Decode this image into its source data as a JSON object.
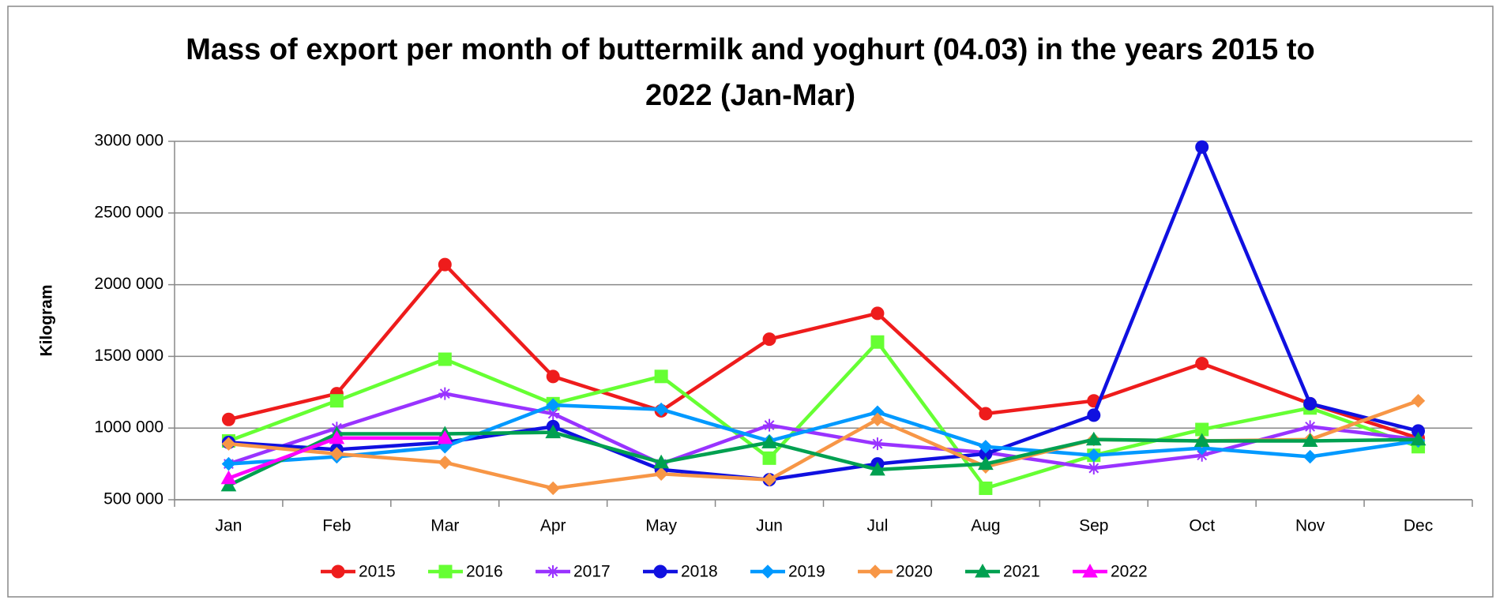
{
  "chart_data": {
    "type": "line",
    "title": "Mass of export per month of buttermilk and yoghurt (04.03) in the years 2015 to 2022 (Jan-Mar)",
    "ylabel": "Kilogram",
    "categories": [
      "Jan",
      "Feb",
      "Mar",
      "Apr",
      "May",
      "Jun",
      "Jul",
      "Aug",
      "Sep",
      "Oct",
      "Nov",
      "Dec"
    ],
    "ylim": [
      500000,
      3000000
    ],
    "yticks": [
      {
        "value": 500000,
        "label": "500 000"
      },
      {
        "value": 1000000,
        "label": "1000 000"
      },
      {
        "value": 1500000,
        "label": "1500 000"
      },
      {
        "value": 2000000,
        "label": "2000 000"
      },
      {
        "value": 2500000,
        "label": "2500 000"
      },
      {
        "value": 3000000,
        "label": "3000 000"
      }
    ],
    "grid": true,
    "legend": "bottom",
    "series": [
      {
        "name": "2015",
        "color": "#ee1c1c",
        "marker": "circle",
        "values": [
          1060000,
          1240000,
          2140000,
          1360000,
          1120000,
          1620000,
          1800000,
          1100000,
          1190000,
          1450000,
          1170000,
          930000
        ]
      },
      {
        "name": "2016",
        "color": "#66ff33",
        "marker": "square",
        "values": [
          910000,
          1190000,
          1480000,
          1170000,
          1360000,
          790000,
          1600000,
          580000,
          810000,
          990000,
          1140000,
          870000
        ]
      },
      {
        "name": "2017",
        "color": "#9933ff",
        "marker": "star",
        "values": [
          750000,
          1000000,
          1240000,
          1100000,
          750000,
          1020000,
          890000,
          830000,
          720000,
          810000,
          1010000,
          920000
        ]
      },
      {
        "name": "2018",
        "color": "#1010e0",
        "marker": "circle",
        "values": [
          900000,
          850000,
          900000,
          1010000,
          710000,
          640000,
          750000,
          820000,
          1090000,
          2960000,
          1170000,
          980000
        ]
      },
      {
        "name": "2019",
        "color": "#0099ff",
        "marker": "diamond",
        "values": [
          750000,
          800000,
          870000,
          1160000,
          1130000,
          910000,
          1110000,
          870000,
          810000,
          860000,
          800000,
          910000
        ]
      },
      {
        "name": "2020",
        "color": "#f79646",
        "marker": "diamond",
        "values": [
          890000,
          820000,
          760000,
          580000,
          680000,
          640000,
          1060000,
          730000,
          920000,
          910000,
          920000,
          1190000
        ]
      },
      {
        "name": "2021",
        "color": "#00a050",
        "marker": "triangle",
        "values": [
          600000,
          960000,
          960000,
          970000,
          760000,
          900000,
          710000,
          750000,
          920000,
          910000,
          910000,
          920000
        ]
      },
      {
        "name": "2022",
        "color": "#ff00ff",
        "marker": "triangle",
        "values": [
          650000,
          930000,
          930000,
          null,
          null,
          null,
          null,
          null,
          null,
          null,
          null,
          null
        ]
      }
    ]
  }
}
